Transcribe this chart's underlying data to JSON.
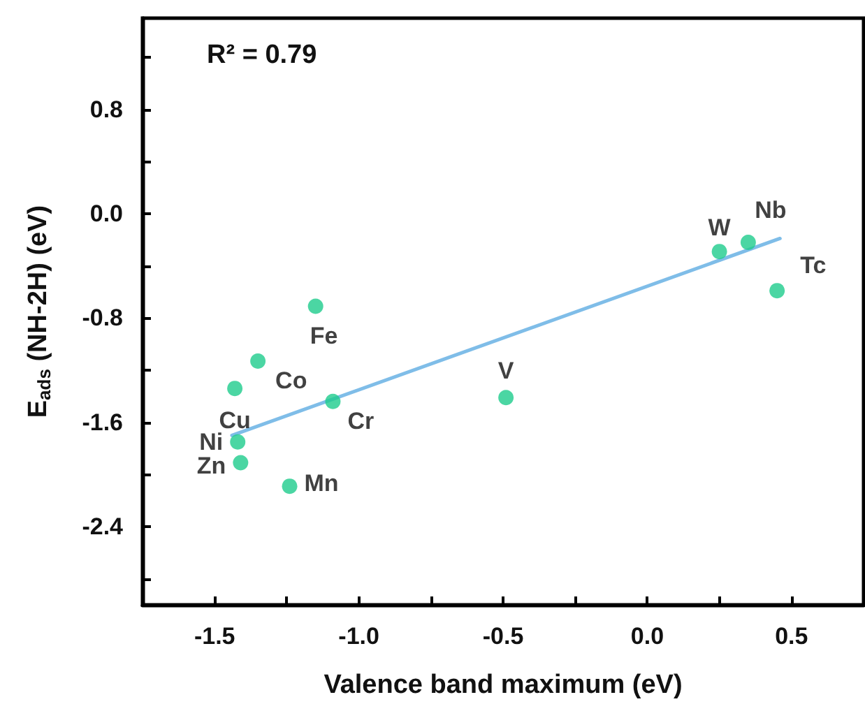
{
  "chart_data": {
    "type": "scatter",
    "xlabel": "Valence band maximum (eV)",
    "ylabel": "E$_{ads}$ (NH-2H) (eV)",
    "annotations": [
      "R² = 0.79"
    ],
    "xlim": [
      -1.75,
      0.75
    ],
    "ylim": [
      -3.0,
      1.5
    ],
    "xticks": [
      {
        "value": -1.5,
        "label": "-1.5"
      },
      {
        "value": -1.25,
        "label": null
      },
      {
        "value": -1.0,
        "label": "-1.0"
      },
      {
        "value": -0.75,
        "label": null
      },
      {
        "value": -0.5,
        "label": "-0.5"
      },
      {
        "value": -0.25,
        "label": null
      },
      {
        "value": 0,
        "label": "0.0"
      },
      {
        "value": 0.25,
        "label": null
      },
      {
        "value": 0.5,
        "label": "0.5"
      }
    ],
    "yticks": [
      {
        "value": -2.8,
        "label": null
      },
      {
        "value": -2.4,
        "label": "-2.4"
      },
      {
        "value": -2.0,
        "label": null
      },
      {
        "value": -1.6,
        "label": "-1.6"
      },
      {
        "value": -1.2,
        "label": null
      },
      {
        "value": -0.8,
        "label": "-0.8"
      },
      {
        "value": -0.4,
        "label": null
      },
      {
        "value": 0,
        "label": "0.0"
      },
      {
        "value": 0.4,
        "label": null
      },
      {
        "value": 0.8,
        "label": "0.8"
      },
      {
        "value": 1.2,
        "label": null
      }
    ],
    "grid": false,
    "series": [
      {
        "color": "#1ecc8c",
        "marker": "circle",
        "x": [
          -1.15,
          -1.35,
          -1.43,
          -1.09,
          -1.42,
          -1.41,
          -1.24,
          -0.49,
          0.25,
          0.35,
          0.45
        ],
        "values": [
          -0.71,
          -1.13,
          -1.34,
          -1.44,
          -1.75,
          -1.91,
          -2.09,
          -1.41,
          -0.29,
          -0.22,
          -0.59
        ],
        "value_labels": [
          "Fe",
          "Co",
          "Cu",
          "Cr",
          "Ni",
          "Zn",
          "Mn",
          "V",
          "W",
          "Nb",
          "Tc"
        ]
      },
      {
        "type": "line",
        "color": "#7fbde8",
        "marker": "none",
        "line_style": "solid",
        "x": [
          -1.44,
          0.46
        ],
        "values": [
          -1.7,
          -0.19
        ]
      }
    ]
  }
}
